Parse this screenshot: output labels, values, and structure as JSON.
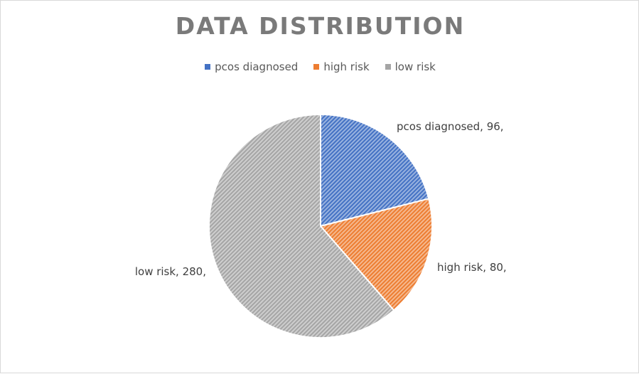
{
  "chart_data": {
    "type": "pie",
    "title": "DATA DISTRIBUTION",
    "legend_position": "top",
    "categories": [
      "pcos diagnosed",
      "high risk",
      "low risk"
    ],
    "values": [
      96,
      80,
      280
    ],
    "colors": [
      "#4472c4",
      "#ed7d31",
      "#a5a5a5"
    ],
    "data_labels": [
      "pcos diagnosed, 96,",
      "high risk, 80,",
      "low risk, 280,"
    ]
  }
}
